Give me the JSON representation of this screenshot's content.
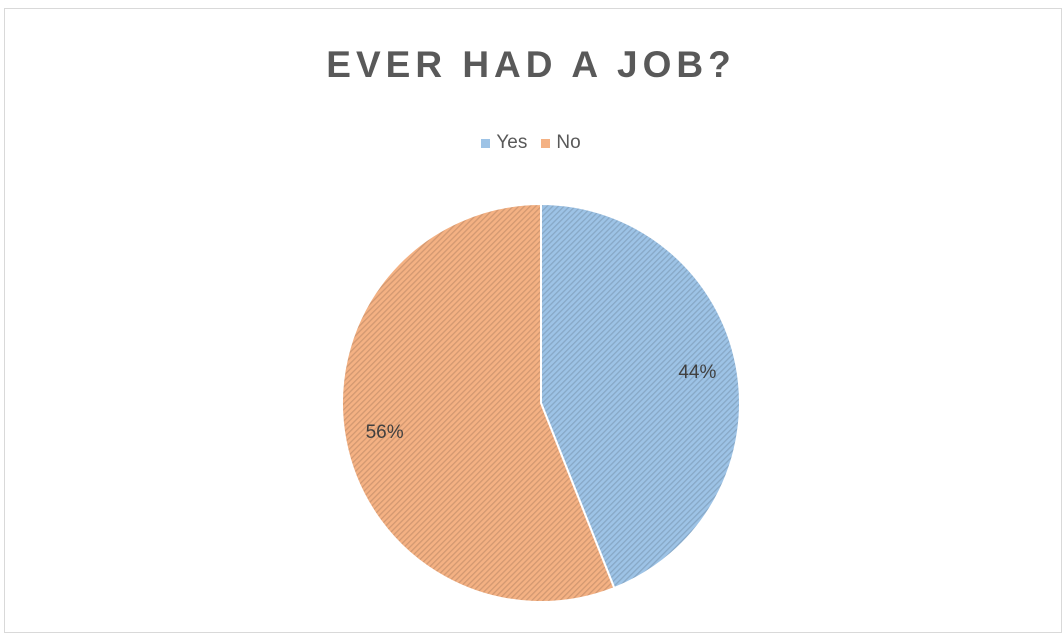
{
  "chart_data": {
    "type": "pie",
    "title": "EVER HAD A JOB?",
    "legend_position": "top",
    "slices": [
      {
        "label": "Yes",
        "value": 44,
        "data_label": "44%",
        "color": "#9dc3e6"
      },
      {
        "label": "No",
        "value": 56,
        "data_label": "56%",
        "color": "#f4b183"
      }
    ]
  }
}
